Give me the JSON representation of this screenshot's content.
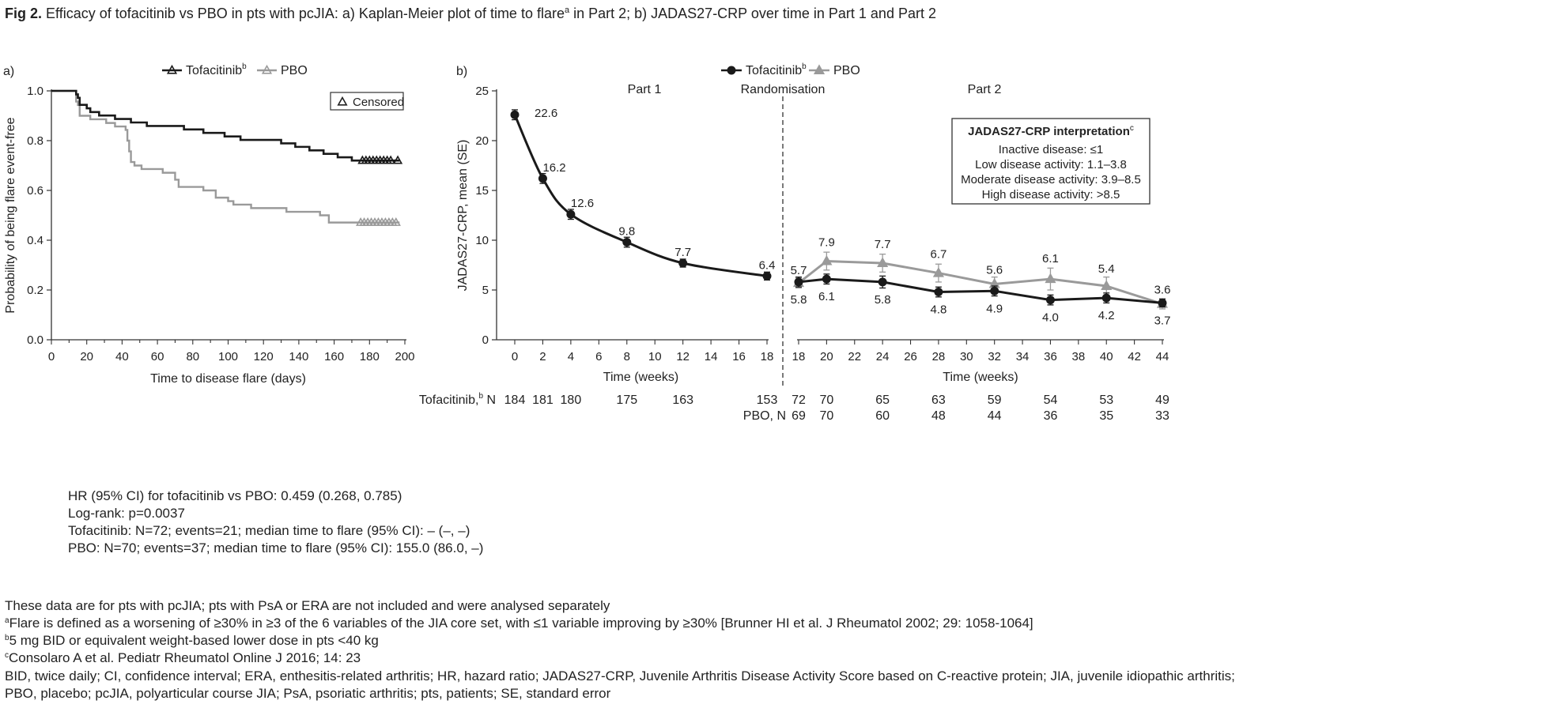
{
  "figure": {
    "label": "Fig 2.",
    "title": "Efficacy of tofacitinib vs PBO in pts with pcJIA: a) Kaplan-Meier plot of time to flare",
    "title_sup": "a",
    "title_tail": " in Part 2; b) JADAS27-CRP over time in Part 1 and Part 2"
  },
  "colors": {
    "tofacitinib": "#1a1a1a",
    "pbo": "#9a9a9a",
    "text": "#222222"
  },
  "chart_data": [
    {
      "panel": "a)",
      "type": "line",
      "xlabel": "Time to disease flare (days)",
      "ylabel": "Probability of being flare event-free",
      "xlim": [
        0,
        200
      ],
      "ylim": [
        0,
        1
      ],
      "x_ticks": [
        "0",
        "20",
        "40",
        "60",
        "80",
        "100",
        "120",
        "140",
        "160",
        "180",
        "200"
      ],
      "y_ticks": [
        "0.0",
        "0.2",
        "0.4",
        "0.6",
        "0.8",
        "1.0"
      ],
      "legend": {
        "position": "top",
        "entries": [
          {
            "label": "Tofacitinib",
            "sup": "b"
          },
          {
            "label": "PBO",
            "sup": ""
          }
        ]
      },
      "censored_label": "Censored",
      "series": [
        {
          "name": "Tofacitinib",
          "step_points": [
            [
              0,
              1.0
            ],
            [
              13,
              1.0
            ],
            [
              14,
              0.986
            ],
            [
              15,
              0.972
            ],
            [
              16,
              0.944
            ],
            [
              20,
              0.93
            ],
            [
              22,
              0.915
            ],
            [
              27,
              0.901
            ],
            [
              36,
              0.887
            ],
            [
              45,
              0.873
            ],
            [
              54,
              0.859
            ],
            [
              64,
              0.859
            ],
            [
              75,
              0.845
            ],
            [
              86,
              0.831
            ],
            [
              98,
              0.817
            ],
            [
              107,
              0.803
            ],
            [
              130,
              0.789
            ],
            [
              138,
              0.775
            ],
            [
              146,
              0.761
            ],
            [
              154,
              0.747
            ],
            [
              162,
              0.733
            ],
            [
              170,
              0.72
            ],
            [
              197,
              0.72
            ]
          ],
          "censored_x": [
            176,
            178,
            180,
            182,
            184,
            186,
            188,
            190,
            192,
            196
          ]
        },
        {
          "name": "PBO",
          "step_points": [
            [
              0,
              1.0
            ],
            [
              13,
              1.0
            ],
            [
              14,
              0.957
            ],
            [
              15,
              0.943
            ],
            [
              16,
              0.9
            ],
            [
              22,
              0.886
            ],
            [
              31,
              0.871
            ],
            [
              36,
              0.857
            ],
            [
              42,
              0.843
            ],
            [
              43,
              0.8
            ],
            [
              44,
              0.757
            ],
            [
              45,
              0.714
            ],
            [
              47,
              0.7
            ],
            [
              51,
              0.686
            ],
            [
              63,
              0.671
            ],
            [
              70,
              0.643
            ],
            [
              72,
              0.614
            ],
            [
              86,
              0.6
            ],
            [
              93,
              0.571
            ],
            [
              100,
              0.557
            ],
            [
              103,
              0.543
            ],
            [
              113,
              0.529
            ],
            [
              133,
              0.514
            ],
            [
              152,
              0.5
            ],
            [
              157,
              0.471
            ],
            [
              197,
              0.471
            ]
          ],
          "censored_x": [
            175,
            177,
            179,
            181,
            183,
            185,
            187,
            189,
            191,
            193,
            195
          ]
        }
      ]
    },
    {
      "panel": "b)",
      "type": "line",
      "ylabel": "JADAS27-CRP, mean (SE)",
      "xlabel": "Time (weeks)",
      "ylim": [
        0,
        25
      ],
      "y_ticks": [
        "0",
        "5",
        "10",
        "15",
        "20",
        "25"
      ],
      "part1": {
        "label": "Part 1",
        "xlim": [
          0,
          18
        ],
        "x_ticks": [
          "0",
          "2",
          "4",
          "6",
          "8",
          "10",
          "12",
          "14",
          "16",
          "18"
        ]
      },
      "part2": {
        "label": "Part 2",
        "xlim": [
          18,
          44
        ],
        "x_ticks": [
          "18",
          "20",
          "22",
          "24",
          "26",
          "28",
          "30",
          "32",
          "34",
          "36",
          "38",
          "40",
          "42",
          "44"
        ]
      },
      "randomisation_label": "Randomisation",
      "legend": {
        "position": "top",
        "entries": [
          {
            "label": "Tofacitinib",
            "sup": "b"
          },
          {
            "label": "PBO",
            "sup": ""
          }
        ]
      },
      "series": [
        {
          "name": "Tofacitinib",
          "part": 1,
          "x": [
            0,
            2,
            4,
            8,
            12,
            18
          ],
          "y": [
            22.6,
            16.2,
            12.6,
            9.8,
            7.7,
            6.4
          ],
          "se": [
            0.5,
            0.5,
            0.5,
            0.5,
            0.4,
            0.4
          ],
          "labels": [
            "22.6",
            "16.2",
            "12.6",
            "9.8",
            "7.7",
            "6.4"
          ]
        },
        {
          "name": "Tofacitinib",
          "part": 2,
          "x": [
            18,
            20,
            24,
            28,
            32,
            36,
            40,
            44
          ],
          "y": [
            5.8,
            6.1,
            5.8,
            4.8,
            4.9,
            4.0,
            4.2,
            3.7
          ],
          "se": [
            0.5,
            0.5,
            0.6,
            0.5,
            0.5,
            0.5,
            0.5,
            0.4
          ],
          "labels": [
            "5.8",
            "6.1",
            "5.8",
            "4.8",
            "4.9",
            "4.0",
            "4.2",
            "3.7"
          ]
        },
        {
          "name": "PBO",
          "part": 2,
          "x": [
            18,
            20,
            24,
            28,
            32,
            36,
            40,
            44
          ],
          "y": [
            5.7,
            7.9,
            7.7,
            6.7,
            5.6,
            6.1,
            5.4,
            3.6
          ],
          "se": [
            0.5,
            0.9,
            0.9,
            0.9,
            0.7,
            1.1,
            0.9,
            0.5
          ],
          "labels": [
            "5.7",
            "7.9",
            "7.7",
            "6.7",
            "5.6",
            "6.1",
            "5.4",
            "3.6"
          ]
        }
      ],
      "interpretation": {
        "title": "JADAS27-CRP interpretation",
        "title_sup": "c",
        "lines": [
          "Inactive disease: ≤1",
          "Low disease activity: 1.1–3.8",
          "Moderate disease activity: 3.9–8.5",
          "High disease activity: >8.5"
        ]
      },
      "n_table": {
        "tofa_label": "Tofacitinib,",
        "tofa_label_sup": "b",
        "tofa_label_tail": " N",
        "pbo_label": "PBO, N",
        "part1_x": [
          0,
          2,
          4,
          8,
          12,
          18
        ],
        "part1_tofa": [
          "184",
          "181",
          "180",
          "175",
          "163",
          "153"
        ],
        "part2_x": [
          18,
          20,
          24,
          28,
          32,
          36,
          40,
          44
        ],
        "part2_tofa": [
          "72",
          "70",
          "65",
          "63",
          "59",
          "54",
          "53",
          "49"
        ],
        "part2_pbo": [
          "69",
          "70",
          "60",
          "48",
          "44",
          "36",
          "35",
          "33"
        ]
      }
    }
  ],
  "stats": [
    "HR (95% CI) for tofacitinib vs PBO: 0.459 (0.268, 0.785)",
    "Log-rank: p=0.0037",
    "Tofacitinib: N=72; events=21; median time to flare (95% CI): – (–, –)",
    "PBO: N=70; events=37; median time to flare (95% CI): 155.0 (86.0, –)"
  ],
  "footnotes": {
    "note1": "These data are for pts with pcJIA; pts with PsA or ERA are not included and were analysed separately",
    "fn_a": {
      "sup": "a",
      "text": "Flare is defined as a worsening of ≥30% in ≥3 of the 6 variables of the JIA core set, with ≤1 variable improving by ≥30% [Brunner HI et al. J Rheumatol 2002; 29: 1058-1064]"
    },
    "fn_b": {
      "sup": "b",
      "text": "5 mg BID or equivalent weight-based lower dose in pts <40 kg"
    },
    "fn_c": {
      "sup": "c",
      "text": "Consolaro A et al. Pediatr Rheumatol Online J 2016; 14: 23"
    },
    "abbrev1": "BID, twice daily; CI, confidence interval; ERA, enthesitis-related arthritis; HR, hazard ratio; JADAS27-CRP, Juvenile Arthritis Disease Activity Score based on C-reactive protein; JIA, juvenile idiopathic arthritis;",
    "abbrev2": "PBO, placebo; pcJIA, polyarticular course JIA; PsA, psoriatic arthritis; pts, patients; SE, standard error"
  }
}
